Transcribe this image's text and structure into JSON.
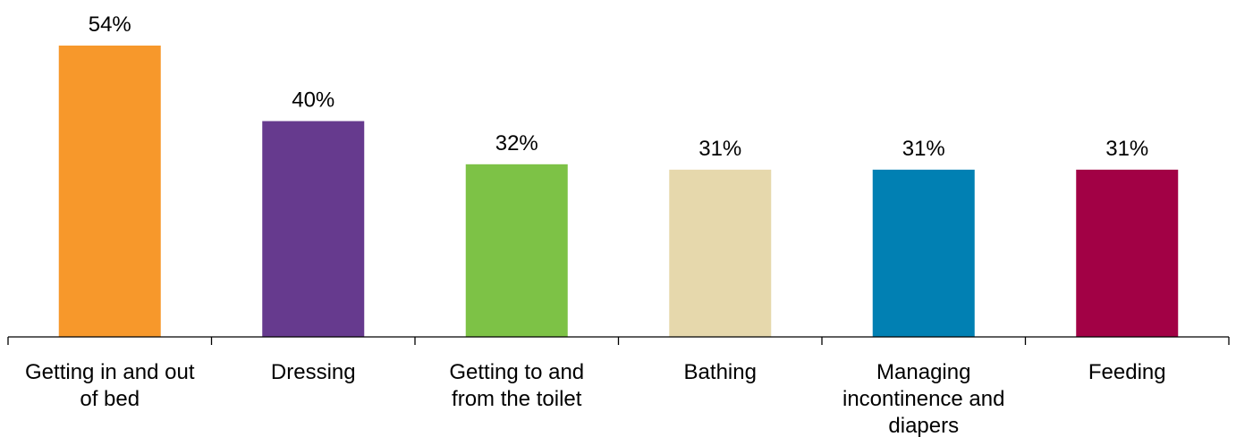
{
  "chart_data": {
    "type": "bar",
    "categories": [
      [
        "Getting in and out",
        "of bed"
      ],
      [
        "Dressing"
      ],
      [
        "Getting to and",
        "from the toilet"
      ],
      [
        "Bathing"
      ],
      [
        "Managing",
        "incontinence and",
        "diapers"
      ],
      [
        "Feeding"
      ]
    ],
    "values": [
      54,
      40,
      32,
      31,
      31,
      31
    ],
    "value_labels": [
      "54%",
      "40%",
      "32%",
      "31%",
      "31%",
      "31%"
    ],
    "colors": [
      "#F7982B",
      "#663A8E",
      "#7DC246",
      "#E6D8AC",
      "#0180B3",
      "#A20145"
    ],
    "title": "",
    "xlabel": "",
    "ylabel": "",
    "ylim": [
      0,
      60
    ],
    "grid": false,
    "legend": "none"
  }
}
